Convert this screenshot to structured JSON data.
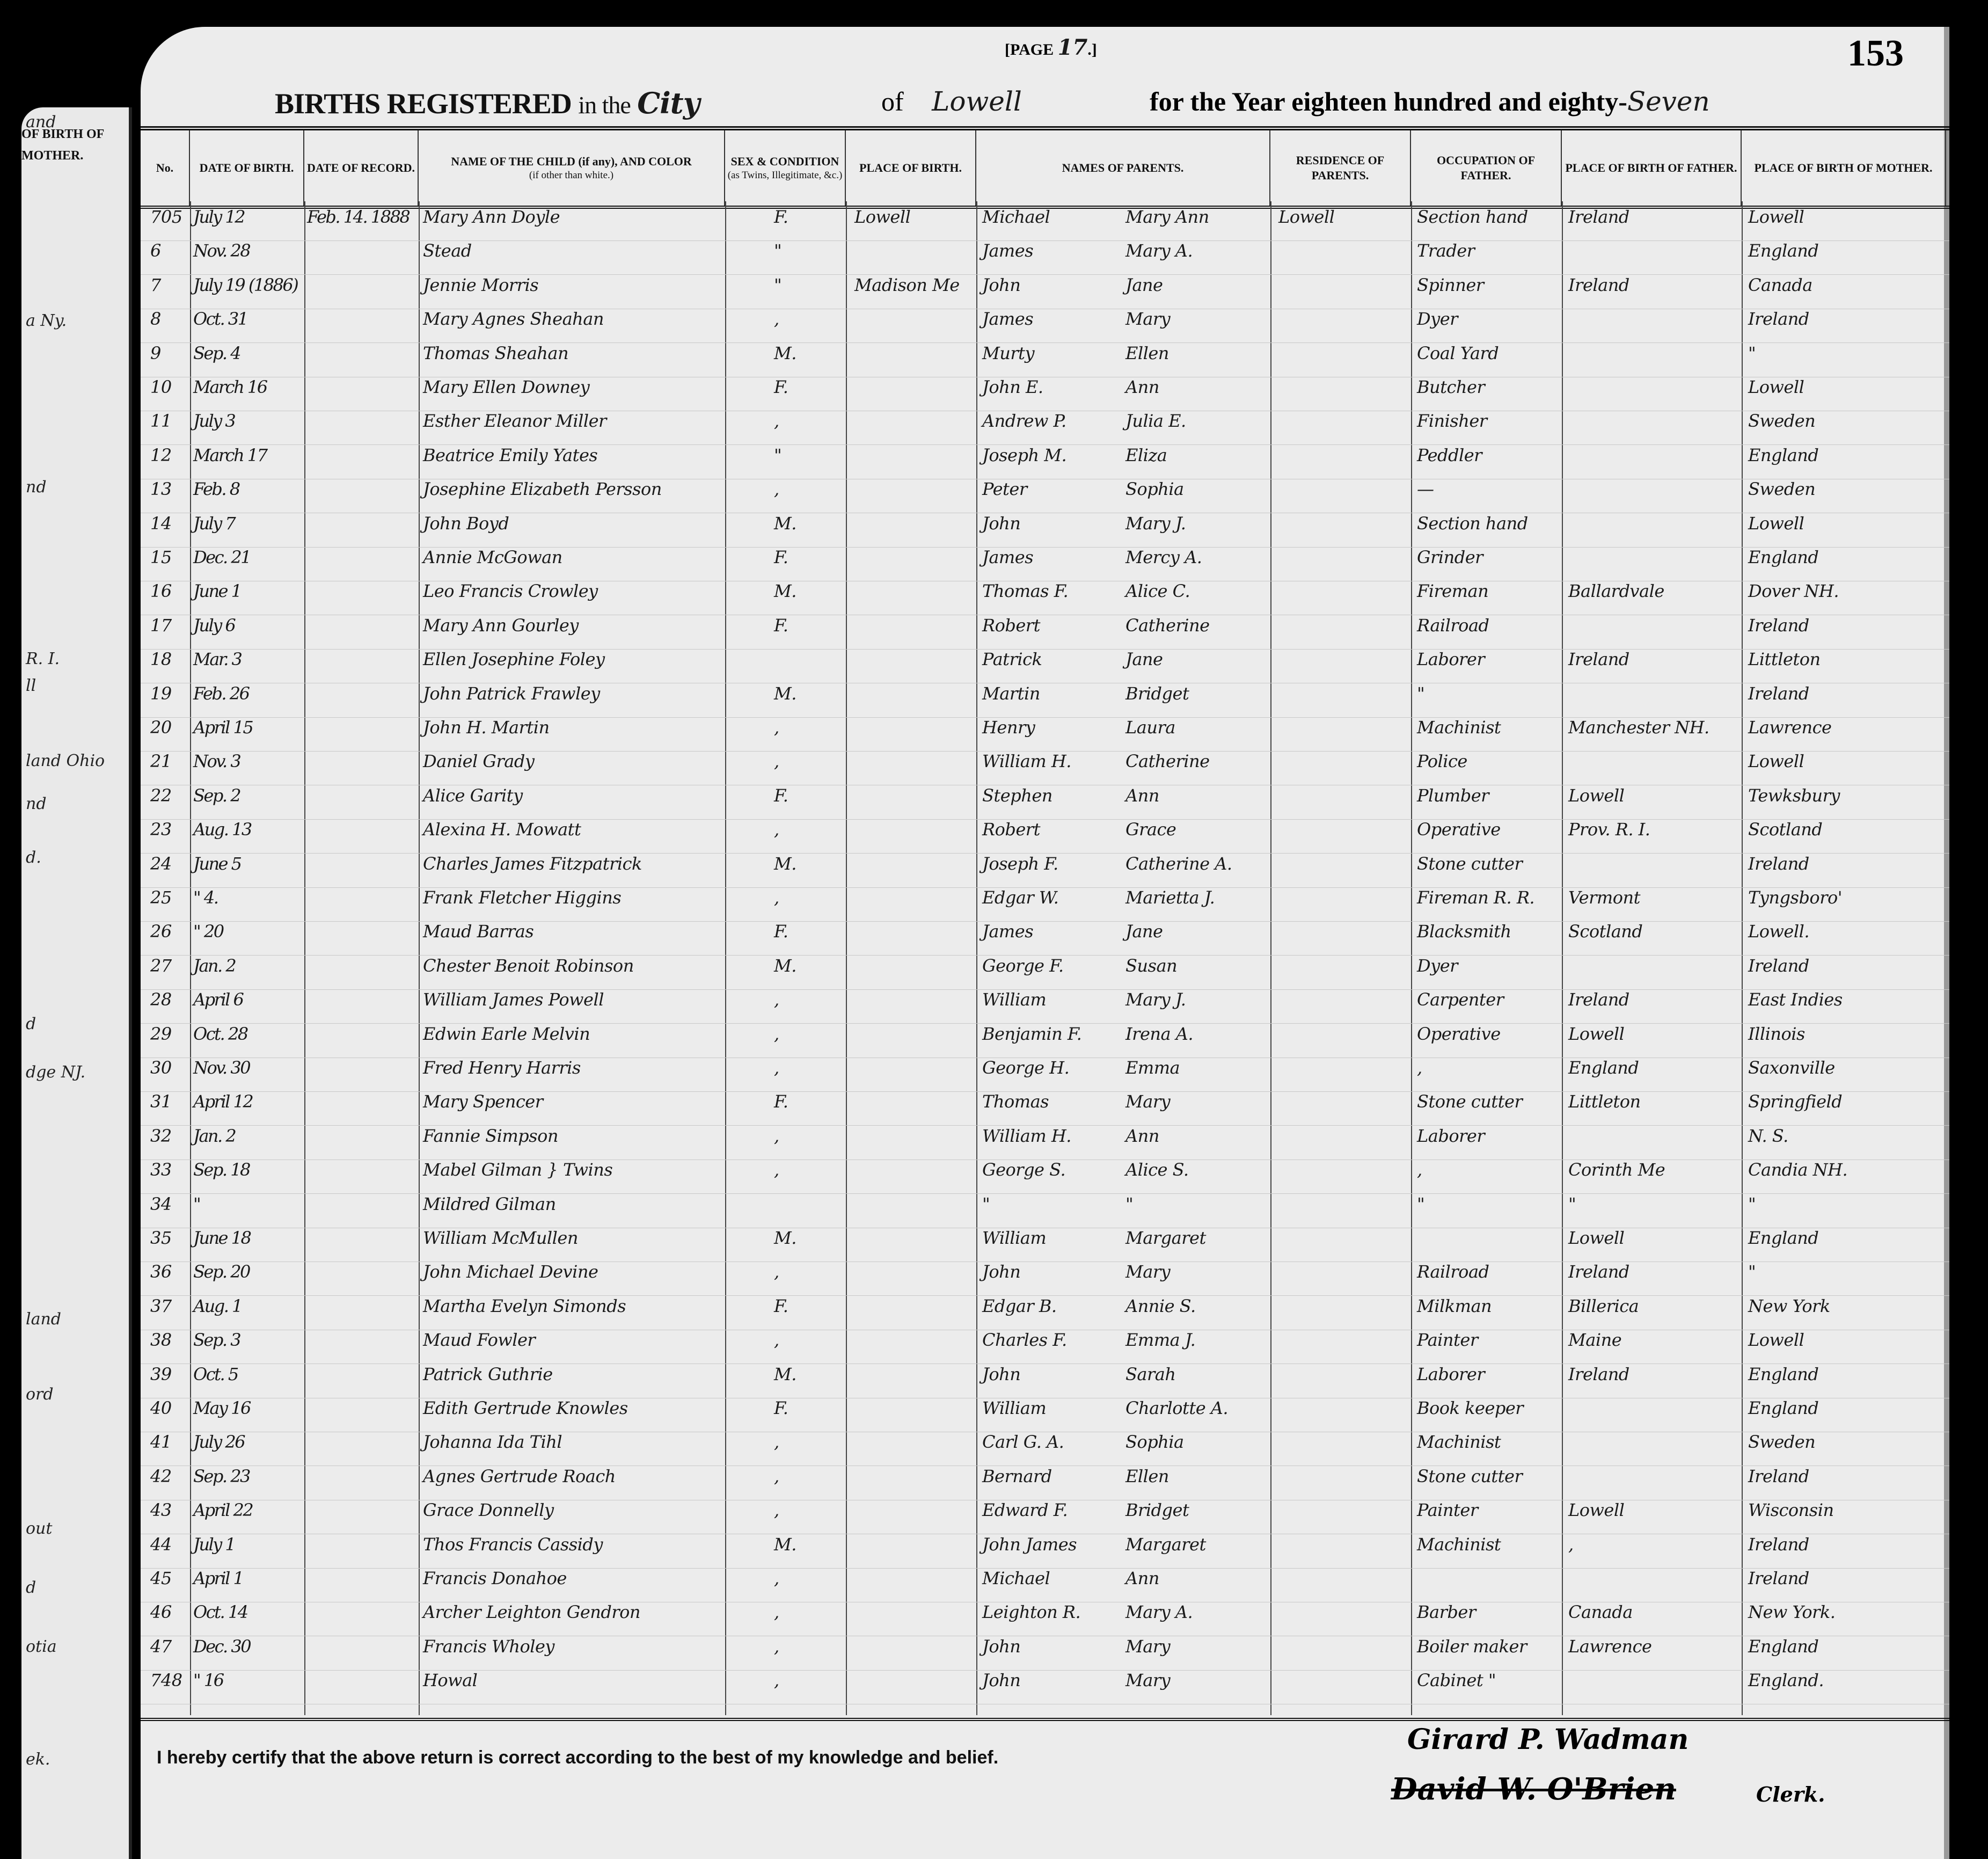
{
  "left_page": {
    "header": "OF BIRTH OF MOTHER.",
    "fragments": [
      "and",
      "a Ny.",
      "nd",
      "R. I.",
      "ll",
      "land Ohio",
      "nd",
      "d.",
      "d",
      "dge NJ.",
      "land",
      "ord",
      "out",
      "d",
      "otia",
      "ek."
    ]
  },
  "header": {
    "title": "BIRTHS REGISTERED",
    "in_the": "in the",
    "municipality_type": "City",
    "of": "of",
    "municipality": "Lowell",
    "page_label": "[PAGE",
    "page_number": "17",
    "folio": "153",
    "year_text": "for the Year eighteen hundred and eighty-",
    "year_suffix": "Seven"
  },
  "columns": [
    {
      "label": "No."
    },
    {
      "label": "DATE OF BIRTH."
    },
    {
      "label": "DATE OF RECORD."
    },
    {
      "label": "NAME OF THE CHILD (if any), AND COLOR",
      "sub": "(if other than white.)"
    },
    {
      "label": "SEX & CONDITION",
      "sub": "(as Twins, Illegitimate, &c.)"
    },
    {
      "label": "PLACE OF BIRTH."
    },
    {
      "label": "NAMES OF PARENTS."
    },
    {
      "label": "RESIDENCE OF PARENTS."
    },
    {
      "label": "OCCUPATION OF FATHER."
    },
    {
      "label": "PLACE OF BIRTH OF FATHER."
    },
    {
      "label": "PLACE OF BIRTH OF MOTHER."
    }
  ],
  "rows": [
    {
      "no": "705",
      "dob": "July 12",
      "record": "Feb. 14. 1888",
      "name": "Mary Ann Doyle",
      "sex": "F.",
      "place": "Lowell",
      "father": "Michael",
      "mother": "Mary Ann",
      "residence": "Lowell",
      "occupation": "Section hand",
      "father_birth": "Ireland",
      "mother_birth": "Lowell"
    },
    {
      "no": "6",
      "dob": "Nov. 28",
      "record": "",
      "name": "Stead",
      "sex": "\"",
      "place": "",
      "father": "James",
      "mother": "Mary A.",
      "residence": "",
      "occupation": "Trader",
      "father_birth": "",
      "mother_birth": "England"
    },
    {
      "no": "7",
      "dob": "July 19 (1886)",
      "record": "",
      "name": "Jennie Morris",
      "sex": "\"",
      "place": "Madison Me",
      "father": "John",
      "mother": "Jane",
      "residence": "",
      "occupation": "Spinner",
      "father_birth": "Ireland",
      "mother_birth": "Canada",
      "struck": true
    },
    {
      "no": "8",
      "dob": "Oct. 31",
      "record": "",
      "name": "Mary Agnes Sheahan",
      "sex": ",",
      "place": "",
      "father": "James",
      "mother": "Mary",
      "residence": "",
      "occupation": "Dyer",
      "father_birth": "",
      "mother_birth": "Ireland"
    },
    {
      "no": "9",
      "dob": "Sep. 4",
      "record": "",
      "name": "Thomas Sheahan",
      "sex": "M.",
      "place": "",
      "father": "Murty",
      "mother": "Ellen",
      "residence": "",
      "occupation": "Coal Yard",
      "father_birth": "",
      "mother_birth": "\""
    },
    {
      "no": "10",
      "dob": "March 16",
      "record": "",
      "name": "Mary Ellen Downey",
      "sex": "F.",
      "place": "",
      "father": "John E.",
      "mother": "Ann",
      "residence": "",
      "occupation": "Butcher",
      "father_birth": "",
      "mother_birth": "Lowell"
    },
    {
      "no": "11",
      "dob": "July 3",
      "record": "",
      "name": "Esther Eleanor Miller",
      "sex": ",",
      "place": "",
      "father": "Andrew P.",
      "mother": "Julia E.",
      "residence": "",
      "occupation": "Finisher",
      "father_birth": "",
      "mother_birth": "Sweden"
    },
    {
      "no": "12",
      "dob": "March 17",
      "record": "",
      "name": "Beatrice Emily Yates",
      "sex": "\"",
      "place": "",
      "father": "Joseph M.",
      "mother": "Eliza",
      "residence": "",
      "occupation": "Peddler",
      "father_birth": "",
      "mother_birth": "England"
    },
    {
      "no": "13",
      "dob": "Feb. 8",
      "record": "",
      "name": "Josephine Elizabeth Persson",
      "sex": ",",
      "place": "",
      "father": "Peter",
      "mother": "Sophia",
      "residence": "",
      "occupation": "—",
      "father_birth": "",
      "mother_birth": "Sweden"
    },
    {
      "no": "14",
      "dob": "July 7",
      "record": "",
      "name": "John Boyd",
      "sex": "M.",
      "place": "",
      "father": "John",
      "mother": "Mary J.",
      "residence": "",
      "occupation": "Section hand",
      "father_birth": "",
      "mother_birth": "Lowell"
    },
    {
      "no": "15",
      "dob": "Dec. 21",
      "record": "",
      "name": "Annie McGowan",
      "sex": "F.",
      "place": "",
      "father": "James",
      "mother": "Mercy A.",
      "residence": "",
      "occupation": "Grinder",
      "father_birth": "",
      "mother_birth": "England"
    },
    {
      "no": "16",
      "dob": "June 1",
      "record": "",
      "name": "Leo Francis Crowley",
      "sex": "M.",
      "place": "",
      "father": "Thomas F.",
      "mother": "Alice C.",
      "residence": "",
      "occupation": "Fireman",
      "father_birth": "Ballardvale",
      "mother_birth": "Dover NH."
    },
    {
      "no": "17",
      "dob": "July 6",
      "record": "",
      "name": "Mary Ann Gourley",
      "sex": "F.",
      "place": "",
      "father": "Robert",
      "mother": "Catherine",
      "residence": "",
      "occupation": "Railroad",
      "father_birth": "",
      "mother_birth": "Ireland"
    },
    {
      "no": "18",
      "dob": "Mar. 3",
      "record": "",
      "name": "Ellen Josephine Foley",
      "sex": "",
      "place": "",
      "father": "Patrick",
      "mother": "Jane",
      "residence": "",
      "occupation": "Laborer",
      "father_birth": "Ireland",
      "mother_birth": "Littleton"
    },
    {
      "no": "19",
      "dob": "Feb. 26",
      "record": "",
      "name": "John Patrick Frawley",
      "sex": "M.",
      "place": "",
      "father": "Martin",
      "mother": "Bridget",
      "residence": "",
      "occupation": "\"",
      "father_birth": "",
      "mother_birth": "Ireland"
    },
    {
      "no": "20",
      "dob": "April 15",
      "record": "",
      "name": "John H. Martin",
      "sex": ",",
      "place": "",
      "father": "Henry",
      "mother": "Laura",
      "residence": "",
      "occupation": "Machinist",
      "father_birth": "Manchester NH.",
      "mother_birth": "Lawrence"
    },
    {
      "no": "21",
      "dob": "Nov. 3",
      "record": "",
      "name": "Daniel Grady",
      "sex": ",",
      "place": "",
      "father": "William H.",
      "mother": "Catherine",
      "residence": "",
      "occupation": "Police",
      "father_birth": "",
      "mother_birth": "Lowell"
    },
    {
      "no": "22",
      "dob": "Sep. 2",
      "record": "",
      "name": "Alice Garity",
      "sex": "F.",
      "place": "",
      "father": "Stephen",
      "mother": "Ann",
      "residence": "",
      "occupation": "Plumber",
      "father_birth": "Lowell",
      "mother_birth": "Tewksbury"
    },
    {
      "no": "23",
      "dob": "Aug. 13",
      "record": "",
      "name": "Alexina H. Mowatt",
      "sex": ",",
      "place": "",
      "father": "Robert",
      "mother": "Grace",
      "residence": "",
      "occupation": "Operative",
      "father_birth": "Prov. R. I.",
      "mother_birth": "Scotland"
    },
    {
      "no": "24",
      "dob": "June 5",
      "record": "",
      "name": "Charles James Fitzpatrick",
      "sex": "M.",
      "place": "",
      "father": "Joseph F.",
      "mother": "Catherine A.",
      "residence": "",
      "occupation": "Stone cutter",
      "father_birth": "",
      "mother_birth": "Ireland"
    },
    {
      "no": "25",
      "dob": "\" 4.",
      "record": "",
      "name": "Frank Fletcher Higgins",
      "sex": ",",
      "place": "",
      "father": "Edgar W.",
      "mother": "Marietta J.",
      "residence": "",
      "occupation": "Fireman R. R.",
      "father_birth": "Vermont",
      "mother_birth": "Tyngsboro'"
    },
    {
      "no": "26",
      "dob": "\" 20",
      "record": "",
      "name": "Maud Barras",
      "sex": "F.",
      "place": "",
      "father": "James",
      "mother": "Jane",
      "residence": "",
      "occupation": "Blacksmith",
      "father_birth": "Scotland",
      "mother_birth": "Lowell."
    },
    {
      "no": "27",
      "dob": "Jan. 2",
      "record": "",
      "name": "Chester Benoit Robinson",
      "sex": "M.",
      "place": "",
      "father": "George F.",
      "mother": "Susan",
      "residence": "",
      "occupation": "Dyer",
      "father_birth": "",
      "mother_birth": "Ireland"
    },
    {
      "no": "28",
      "dob": "April 6",
      "record": "",
      "name": "William James Powell",
      "sex": ",",
      "place": "",
      "father": "William",
      "mother": "Mary J.",
      "residence": "",
      "occupation": "Carpenter",
      "father_birth": "Ireland",
      "mother_birth": "East Indies"
    },
    {
      "no": "29",
      "dob": "Oct. 28",
      "record": "",
      "name": "Edwin Earle Melvin",
      "sex": ",",
      "place": "",
      "father": "Benjamin F.",
      "mother": "Irena A.",
      "residence": "",
      "occupation": "Operative",
      "father_birth": "Lowell",
      "mother_birth": "Illinois"
    },
    {
      "no": "30",
      "dob": "Nov. 30",
      "record": "",
      "name": "Fred Henry Harris",
      "sex": ",",
      "place": "",
      "father": "George H.",
      "mother": "Emma",
      "residence": "",
      "occupation": ",",
      "father_birth": "England",
      "mother_birth": "Saxonville"
    },
    {
      "no": "31",
      "dob": "April 12",
      "record": "",
      "name": "Mary Spencer",
      "sex": "F.",
      "place": "",
      "father": "Thomas",
      "mother": "Mary",
      "residence": "",
      "occupation": "Stone cutter",
      "father_birth": "Littleton",
      "mother_birth": "Springfield"
    },
    {
      "no": "32",
      "dob": "Jan. 2",
      "record": "",
      "name": "Fannie Simpson",
      "sex": ",",
      "place": "",
      "father": "William H.",
      "mother": "Ann",
      "residence": "",
      "occupation": "Laborer",
      "father_birth": "",
      "mother_birth": "N. S."
    },
    {
      "no": "33",
      "dob": "Sep. 18",
      "record": "",
      "name": "Mabel Gilman } Twins",
      "sex": ",",
      "place": "",
      "father": "George S.",
      "mother": "Alice S.",
      "residence": "",
      "occupation": ",",
      "father_birth": "Corinth Me",
      "mother_birth": "Candia NH."
    },
    {
      "no": "34",
      "dob": "\"",
      "record": "",
      "name": "Mildred Gilman",
      "sex": "",
      "place": "",
      "father": "\"",
      "mother": "\"",
      "residence": "",
      "occupation": "\"",
      "father_birth": "\"",
      "mother_birth": "\""
    },
    {
      "no": "35",
      "dob": "June 18",
      "record": "",
      "name": "William McMullen",
      "sex": "M.",
      "place": "",
      "father": "William",
      "mother": "Margaret",
      "residence": "",
      "occupation": "",
      "father_birth": "Lowell",
      "mother_birth": "England"
    },
    {
      "no": "36",
      "dob": "Sep. 20",
      "record": "",
      "name": "John Michael Devine",
      "sex": ",",
      "place": "",
      "father": "John",
      "mother": "Mary",
      "residence": "",
      "occupation": "Railroad",
      "father_birth": "Ireland",
      "mother_birth": "\""
    },
    {
      "no": "37",
      "dob": "Aug. 1",
      "record": "",
      "name": "Martha Evelyn Simonds",
      "sex": "F.",
      "place": "",
      "father": "Edgar B.",
      "mother": "Annie S.",
      "residence": "",
      "occupation": "Milkman",
      "father_birth": "Billerica",
      "mother_birth": "New York"
    },
    {
      "no": "38",
      "dob": "Sep. 3",
      "record": "",
      "name": "Maud Fowler",
      "sex": ",",
      "place": "",
      "father": "Charles F.",
      "mother": "Emma J.",
      "residence": "",
      "occupation": "Painter",
      "father_birth": "Maine",
      "mother_birth": "Lowell"
    },
    {
      "no": "39",
      "dob": "Oct. 5",
      "record": "",
      "name": "Patrick Guthrie",
      "sex": "M.",
      "place": "",
      "father": "John",
      "mother": "Sarah",
      "residence": "",
      "occupation": "Laborer",
      "father_birth": "Ireland",
      "mother_birth": "England"
    },
    {
      "no": "40",
      "dob": "May 16",
      "record": "",
      "name": "Edith Gertrude Knowles",
      "sex": "F.",
      "place": "",
      "father": "William",
      "mother": "Charlotte A.",
      "residence": "",
      "occupation": "Book keeper",
      "father_birth": "",
      "mother_birth": "England"
    },
    {
      "no": "41",
      "dob": "July 26",
      "record": "",
      "name": "Johanna Ida Tihl",
      "sex": ",",
      "place": "",
      "father": "Carl G. A.",
      "mother": "Sophia",
      "residence": "",
      "occupation": "Machinist",
      "father_birth": "",
      "mother_birth": "Sweden"
    },
    {
      "no": "42",
      "dob": "Sep. 23",
      "record": "",
      "name": "Agnes Gertrude Roach",
      "sex": ",",
      "place": "",
      "father": "Bernard",
      "mother": "Ellen",
      "residence": "",
      "occupation": "Stone cutter",
      "father_birth": "",
      "mother_birth": "Ireland"
    },
    {
      "no": "43",
      "dob": "April 22",
      "record": "",
      "name": "Grace Donnelly",
      "sex": ",",
      "place": "",
      "father": "Edward F.",
      "mother": "Bridget",
      "residence": "",
      "occupation": "Painter",
      "father_birth": "Lowell",
      "mother_birth": "Wisconsin"
    },
    {
      "no": "44",
      "dob": "July 1",
      "record": "",
      "name": "Thos Francis Cassidy",
      "sex": "M.",
      "place": "",
      "father": "John James",
      "mother": "Margaret",
      "residence": "",
      "occupation": "Machinist",
      "father_birth": ",",
      "mother_birth": "Ireland"
    },
    {
      "no": "45",
      "dob": "April 1",
      "record": "",
      "name": "Francis Donahoe",
      "sex": ",",
      "place": "",
      "father": "Michael",
      "mother": "Ann",
      "residence": "",
      "occupation": "",
      "father_birth": "",
      "mother_birth": "Ireland"
    },
    {
      "no": "46",
      "dob": "Oct. 14",
      "record": "",
      "name": "Archer Leighton Gendron",
      "sex": ",",
      "place": "",
      "father": "Leighton R.",
      "mother": "Mary A.",
      "residence": "",
      "occupation": "Barber",
      "father_birth": "Canada",
      "mother_birth": "New York."
    },
    {
      "no": "47",
      "dob": "Dec. 30",
      "record": "",
      "name": "Francis Wholey",
      "sex": ",",
      "place": "",
      "father": "John",
      "mother": "Mary",
      "residence": "",
      "occupation": "Boiler maker",
      "father_birth": "Lawrence",
      "mother_birth": "England"
    },
    {
      "no": "748",
      "dob": "\" 16",
      "record": "",
      "name": "Howal",
      "sex": ",",
      "place": "",
      "father": "John",
      "mother": "Mary",
      "residence": "",
      "occupation": "Cabinet \"",
      "father_birth": "",
      "mother_birth": "England."
    }
  ],
  "footer": {
    "certification": "I hereby certify that the above return is correct according to the best of my knowledge and belief.",
    "signature_1": "Girard P. Wadman",
    "signature_2": "David W. O'Brien",
    "clerk_label": "Clerk."
  }
}
